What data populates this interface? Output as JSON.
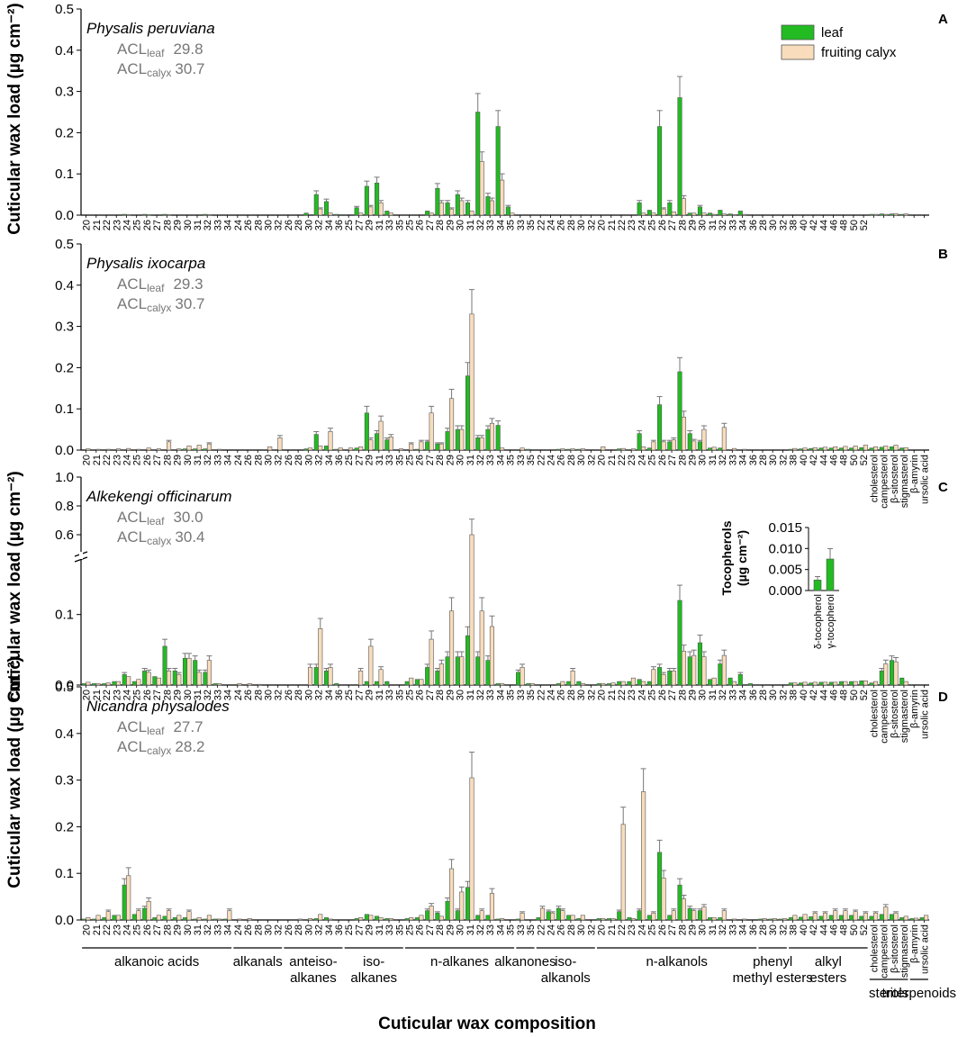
{
  "ylabel": "Cuticular wax load (µg cm⁻²)",
  "xlabel": "Cuticular wax composition",
  "legend": [
    {
      "label": "leaf",
      "color": "#22bb22"
    },
    {
      "label": "fruiting calyx",
      "color": "#f8dcbc"
    }
  ],
  "groups": [
    {
      "label": "alkanoic acids",
      "chains": [
        "20",
        "21",
        "22",
        "23",
        "24",
        "25",
        "26",
        "27",
        "28",
        "29",
        "30",
        "31",
        "32",
        "33",
        "34"
      ]
    },
    {
      "label": "alkanals",
      "chains": [
        "24",
        "26",
        "28",
        "30",
        "32"
      ]
    },
    {
      "label": "anteiso-alkanes",
      "chains": [
        "26",
        "28",
        "30",
        "32",
        "34",
        "36"
      ]
    },
    {
      "label": "iso-alkanes",
      "chains": [
        "25",
        "27",
        "29",
        "31",
        "33",
        "35"
      ]
    },
    {
      "label": "n-alkanes",
      "chains": [
        "25",
        "26",
        "27",
        "28",
        "29",
        "30",
        "31",
        "32",
        "33",
        "34",
        "35"
      ]
    },
    {
      "label": "alkanones",
      "chains": [
        "33",
        "35"
      ]
    },
    {
      "label": "iso-alkanols",
      "chains": [
        "22",
        "24",
        "26",
        "28",
        "30",
        "32"
      ]
    },
    {
      "label": "n-alkanols",
      "chains": [
        "20",
        "21",
        "22",
        "23",
        "24",
        "25",
        "26",
        "27",
        "28",
        "29",
        "30",
        "31",
        "32",
        "33",
        "34",
        "36"
      ]
    },
    {
      "label": "phenyl methyl esters",
      "chains": [
        "28",
        "30",
        "32"
      ]
    },
    {
      "label": "alkyl esters",
      "chains": [
        "38",
        "40",
        "42",
        "44",
        "46",
        "48",
        "50",
        "52"
      ]
    },
    {
      "label": "sterols",
      "chains": [
        "cholesterol",
        "campesterol",
        "β-sitosterol",
        "stigmasterol"
      ]
    },
    {
      "label": "triterpenoids",
      "chains": [
        "β-amyrin",
        "ursolic acid"
      ]
    }
  ],
  "chart_data": [
    {
      "panel": "A",
      "type": "bar",
      "species": "Physalis peruviana",
      "acl_leaf": "29.8",
      "acl_calyx": "30.7",
      "ylim": [
        0,
        0.5
      ],
      "yticks": [
        "0.0",
        "0.1",
        "0.2",
        "0.3",
        "0.4",
        "0.5"
      ],
      "series": [
        {
          "name": "leaf",
          "values": [
            0,
            0,
            0,
            0,
            0.002,
            0,
            0.002,
            0,
            0.002,
            0,
            0,
            0,
            0.002,
            0,
            0,
            0,
            0,
            0,
            0,
            0,
            0,
            0,
            0.005,
            0.05,
            0.033,
            0.002,
            0,
            0.018,
            0.07,
            0.078,
            0.01,
            0,
            0,
            0,
            0.01,
            0.065,
            0.03,
            0.05,
            0.03,
            0.25,
            0.045,
            0.215,
            0.02,
            0,
            0,
            0,
            0,
            0,
            0,
            0,
            0,
            0,
            0,
            0,
            0,
            0.03,
            0.012,
            0.215,
            0.03,
            0.285,
            0.005,
            0.02,
            0.005,
            0.012,
            0.003,
            0.01,
            0,
            0,
            0,
            0,
            0,
            0,
            0,
            0,
            0,
            0,
            0,
            0,
            0.002,
            0.003,
            0.003,
            0.002,
            0,
            0
          ]
        },
        {
          "name": "fruiting calyx",
          "values": [
            0,
            0,
            0,
            0,
            0.001,
            0,
            0.001,
            0,
            0.001,
            0,
            0,
            0,
            0.001,
            0,
            0,
            0,
            0,
            0,
            0,
            0,
            0,
            0,
            0,
            0.015,
            0.005,
            0,
            0,
            0.005,
            0.02,
            0.03,
            0.005,
            0,
            0,
            0,
            0.005,
            0.03,
            0.015,
            0.035,
            0.01,
            0.13,
            0.035,
            0.085,
            0.005,
            0,
            0,
            0,
            0,
            0,
            0,
            0,
            0,
            0,
            0,
            0,
            0,
            0.005,
            0.005,
            0.015,
            0.008,
            0.04,
            0.005,
            0.005,
            0.002,
            0.003,
            0.001,
            0.002,
            0,
            0,
            0,
            0,
            0,
            0,
            0,
            0,
            0,
            0,
            0,
            0,
            0.002,
            0.002,
            0.004,
            0.003,
            0,
            0
          ]
        }
      ]
    },
    {
      "panel": "B",
      "type": "bar",
      "species": "Physalis ixocarpa",
      "acl_leaf": "29.3",
      "acl_calyx": "30.7",
      "ylim": [
        0,
        0.5
      ],
      "yticks": [
        "0.0",
        "0.1",
        "0.2",
        "0.3",
        "0.4",
        "0.5"
      ],
      "series": [
        {
          "name": "leaf",
          "values": [
            0,
            0,
            0,
            0,
            0,
            0,
            0,
            0,
            0,
            0,
            0.003,
            0.003,
            0.003,
            0,
            0,
            0,
            0,
            0,
            0,
            0,
            0,
            0,
            0.003,
            0.038,
            0.01,
            0.002,
            0,
            0.005,
            0.09,
            0.04,
            0.025,
            0,
            0,
            0.002,
            0.02,
            0.015,
            0.045,
            0.05,
            0.18,
            0.03,
            0.05,
            0.06,
            0,
            0,
            0.002,
            0,
            0,
            0.002,
            0.002,
            0.002,
            0,
            0,
            0,
            0.003,
            0,
            0.04,
            0.005,
            0.11,
            0.02,
            0.19,
            0.04,
            0.02,
            0.005,
            0.005,
            0,
            0,
            0,
            0,
            0,
            0,
            0.002,
            0.003,
            0.004,
            0.005,
            0.005,
            0.005,
            0.005,
            0.006,
            0.005,
            0.007,
            0.008,
            0.005,
            0,
            0
          ]
        },
        {
          "name": "fruiting calyx",
          "values": [
            0.003,
            0.002,
            0.002,
            0.003,
            0.004,
            0.002,
            0.005,
            0.003,
            0.02,
            0.003,
            0.01,
            0.012,
            0.015,
            0.002,
            0,
            0,
            0,
            0,
            0.008,
            0.03,
            0,
            0,
            0.005,
            0.01,
            0.045,
            0.005,
            0.005,
            0.008,
            0.025,
            0.07,
            0.032,
            0.003,
            0.015,
            0.02,
            0.09,
            0.015,
            0.125,
            0.05,
            0.33,
            0.03,
            0.065,
            0.005,
            0,
            0.005,
            0,
            0,
            0,
            0.003,
            0.003,
            0.003,
            0,
            0.008,
            0,
            0.004,
            0.003,
            0.008,
            0.02,
            0.02,
            0.025,
            0.08,
            0.022,
            0.05,
            0.007,
            0.055,
            0.004,
            0.002,
            0,
            0,
            0,
            0,
            0.004,
            0.005,
            0.006,
            0.007,
            0.008,
            0.009,
            0.01,
            0.012,
            0.008,
            0.01,
            0.012,
            0.006,
            0,
            0
          ]
        }
      ]
    },
    {
      "panel": "C",
      "type": "bar",
      "species": "Alkekengi officinarum",
      "acl_leaf": "30.0",
      "acl_calyx": "30.4",
      "ylim": [
        0,
        1.0
      ],
      "axis_break": [
        0.18,
        0.5
      ],
      "yticks": [
        "0.0",
        "0.1",
        "0.6",
        "0.8",
        "1.0"
      ],
      "series": [
        {
          "name": "leaf",
          "values": [
            0.002,
            0.002,
            0.002,
            0.005,
            0.015,
            0.005,
            0.02,
            0.012,
            0.055,
            0.02,
            0.038,
            0.035,
            0.018,
            0.002,
            0,
            0,
            0,
            0,
            0,
            0,
            0,
            0,
            0,
            0.025,
            0.02,
            0.002,
            0,
            0,
            0.005,
            0.005,
            0.005,
            0,
            0.005,
            0.008,
            0.025,
            0.02,
            0.04,
            0.04,
            0.07,
            0.04,
            0.035,
            0.002,
            0,
            0.018,
            0.002,
            0,
            0,
            0.002,
            0.005,
            0.005,
            0,
            0.002,
            0.002,
            0.005,
            0.005,
            0.008,
            0.005,
            0.025,
            0.02,
            0.12,
            0.04,
            0.06,
            0.008,
            0.03,
            0.01,
            0.015,
            0.002,
            0,
            0,
            0,
            0.003,
            0.003,
            0.003,
            0.004,
            0.004,
            0.005,
            0.005,
            0.006,
            0.003,
            0.02,
            0.035,
            0.01,
            0,
            0
          ]
        },
        {
          "name": "fruiting calyx",
          "values": [
            0.004,
            0.002,
            0.003,
            0.005,
            0.012,
            0.008,
            0.018,
            0.01,
            0.02,
            0.015,
            0.038,
            0.018,
            0.035,
            0.002,
            0,
            0.002,
            0.002,
            0.001,
            0,
            0,
            0,
            0,
            0.025,
            0.08,
            0.025,
            0,
            0,
            0.02,
            0.055,
            0.022,
            0,
            0,
            0.01,
            0.008,
            0.065,
            0.03,
            0.105,
            0.04,
            0.6,
            0.105,
            0.083,
            0.002,
            0,
            0.025,
            0.002,
            0,
            0,
            0.005,
            0.02,
            0.002,
            0,
            0.002,
            0.003,
            0.005,
            0.01,
            0.005,
            0.022,
            0.015,
            0.02,
            0.048,
            0.042,
            0.04,
            0.01,
            0.042,
            0.005,
            0,
            0,
            0,
            0,
            0,
            0.003,
            0.004,
            0.004,
            0.004,
            0.004,
            0.005,
            0.005,
            0.006,
            0.005,
            0.03,
            0.033,
            0.005,
            0,
            0
          ]
        }
      ],
      "inset": {
        "ylabel": "Tocopherols (µg cm⁻²)",
        "yticks": [
          "0.000",
          "0.005",
          "0.010",
          "0.015"
        ],
        "ylim": [
          0,
          0.015
        ],
        "categories": [
          "δ-tocopherol",
          "γ-tocopherol"
        ],
        "values": [
          0.0025,
          0.0075
        ]
      }
    },
    {
      "panel": "D",
      "type": "bar",
      "species": "Nicandra physalodes",
      "acl_leaf": "27.7",
      "acl_calyx": "28.2",
      "ylim": [
        0,
        0.5
      ],
      "yticks": [
        "0.0",
        "0.1",
        "0.2",
        "0.3",
        "0.4",
        "0.5"
      ],
      "series": [
        {
          "name": "leaf",
          "values": [
            0.002,
            0.002,
            0.005,
            0.01,
            0.075,
            0.012,
            0.025,
            0.005,
            0.008,
            0.005,
            0.005,
            0.002,
            0.002,
            0.002,
            0.002,
            0,
            0,
            0,
            0,
            0,
            0,
            0,
            0,
            0.003,
            0.005,
            0,
            0,
            0.003,
            0.012,
            0.008,
            0.003,
            0,
            0.003,
            0.005,
            0.02,
            0.015,
            0.04,
            0.02,
            0.07,
            0.01,
            0.01,
            0.002,
            0,
            0.002,
            0,
            0.005,
            0.018,
            0.025,
            0.01,
            0.003,
            0,
            0.003,
            0.003,
            0.018,
            0.005,
            0.02,
            0.01,
            0.145,
            0.01,
            0.075,
            0.025,
            0.02,
            0.005,
            0.005,
            0,
            0,
            0,
            0.002,
            0.002,
            0.002,
            0.005,
            0.006,
            0.007,
            0.008,
            0.01,
            0.01,
            0.01,
            0.008,
            0.008,
            0.012,
            0.012,
            0.005,
            0.003,
            0.005
          ]
        },
        {
          "name": "fruiting calyx",
          "values": [
            0.005,
            0.01,
            0.018,
            0.01,
            0.095,
            0.02,
            0.04,
            0.01,
            0.02,
            0.01,
            0.018,
            0.005,
            0.01,
            0.002,
            0.02,
            0.002,
            0.003,
            0,
            0,
            0,
            0,
            0.002,
            0.003,
            0.012,
            0.002,
            0,
            0,
            0.005,
            0.01,
            0.005,
            0.003,
            0,
            0.005,
            0.01,
            0.03,
            0.008,
            0.11,
            0.06,
            0.305,
            0.02,
            0.057,
            0.003,
            0,
            0.015,
            0,
            0.025,
            0.015,
            0.02,
            0.01,
            0.01,
            0,
            0.003,
            0.003,
            0.205,
            0.003,
            0.275,
            0.015,
            0.09,
            0.02,
            0.045,
            0.02,
            0.028,
            0.005,
            0.02,
            0.002,
            0.002,
            0,
            0.003,
            0.003,
            0.003,
            0.01,
            0.012,
            0.015,
            0.015,
            0.02,
            0.02,
            0.018,
            0.015,
            0.015,
            0.028,
            0.015,
            0.008,
            0.004,
            0.01
          ]
        }
      ]
    }
  ]
}
